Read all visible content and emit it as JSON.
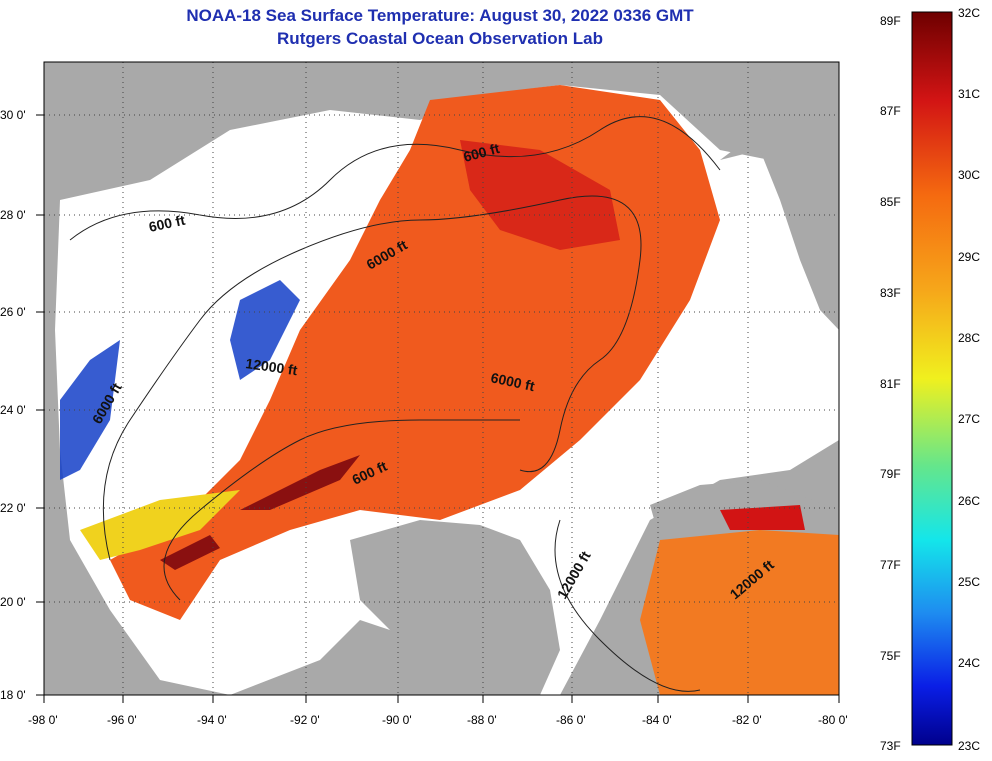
{
  "title": "NOAA-18 Sea Surface Temperature:  August 30, 2022 0336 GMT",
  "subtitle": "Rutgers Coastal Ocean Observation Lab",
  "map": {
    "lon_ticks": [
      "-98 0'",
      "-96 0'",
      "-94 0'",
      "-92 0'",
      "-90 0'",
      "-88 0'",
      "-86 0'",
      "-84 0'",
      "-82 0'",
      "-80 0'"
    ],
    "lat_ticks": [
      "30 0'",
      "28 0'",
      "26 0'",
      "24 0'",
      "22 0'",
      "20 0'",
      "18 0'"
    ],
    "contour_labels": [
      "600 ft",
      "600 ft",
      "6000 ft",
      "12000 ft",
      "6000 ft",
      "6000 ft",
      "600 ft",
      "12000 ft",
      "12000 ft"
    ],
    "colors": {
      "land": "#a9a9a9",
      "cloud": "#ffffff",
      "ocean_warm": "#f05a1e",
      "ocean_hot": "#c8141e",
      "ocean_cool": "#1440c8"
    }
  },
  "colorbar": {
    "f_labels": [
      "89F",
      "87F",
      "85F",
      "83F",
      "81F",
      "79F",
      "77F",
      "75F",
      "73F"
    ],
    "c_labels": [
      "32C",
      "31C",
      "30C",
      "29C",
      "28C",
      "27C",
      "26C",
      "25C",
      "24C",
      "23C"
    ]
  }
}
